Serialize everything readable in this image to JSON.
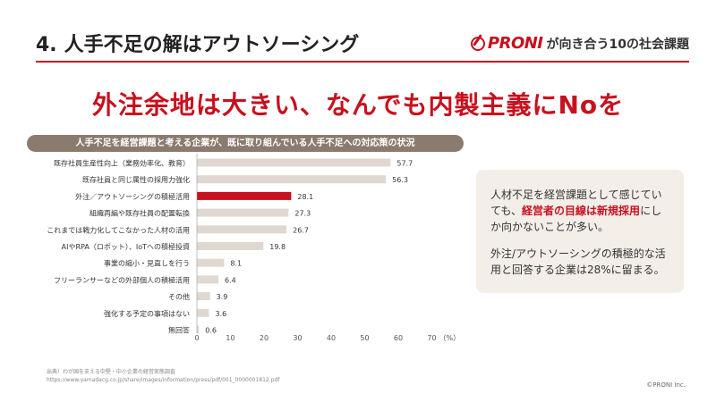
{
  "header": {
    "number": "4.",
    "title": "人手不足の解はアウトソーシング",
    "brand_name": "PRONI",
    "brand_tagline": "が向き合う10の社会課題",
    "brand_color": "#c8101e"
  },
  "headline": "外注余地は大きい、なんでも内製主義にNoを",
  "note": {
    "p1_before": "人材不足を経営課題として感じていても、",
    "p1_highlight": "経営者の目線は新規採用",
    "p1_after": "にしか向かないことが多い。",
    "p2": "外注/アウトソーシングの積極的な活用と回答する企業は28%に留まる。"
  },
  "source": {
    "line1": "出典）わが国を支える中堅・中小企業の経営実態調査",
    "line2": "https://www.yamadacg.co.jp/share/images/information/press/pdf/001_0000001812.pdf"
  },
  "copyright": "©PRONI Inc.",
  "chart_data": {
    "type": "bar",
    "orientation": "horizontal",
    "title": "人手不足を経営課題と考える企業が、既に取り組んでいる人手不足への対応策の状況",
    "categories": [
      "既存社員生産性向上（業務効率化、教育）",
      "既存社員と同じ属性の採用力強化",
      "外注／アウトソーシングの積極活用",
      "組織再編や既存社員の配置転換",
      "これまでは戦力化してこなかった人材の活用",
      "AIやRPA（ロボット）、IoTへの積極投資",
      "事業の縮小・見直しを行う",
      "フリーランサーなどの外部個人の積極活用",
      "その他",
      "強化する予定の事項はない",
      "無回答"
    ],
    "values": [
      57.7,
      56.3,
      28.1,
      27.3,
      26.7,
      19.8,
      8.1,
      6.4,
      3.9,
      3.6,
      0.6
    ],
    "value_labels": [
      "57.7",
      "56.3",
      "28.1",
      "27.3",
      "26.7",
      "19.8",
      "8.1",
      "6.4",
      "3.9",
      "3.6",
      "0.6"
    ],
    "highlight_index": 2,
    "xlim": [
      0,
      70
    ],
    "xticks": [
      "0",
      "10",
      "20",
      "30",
      "40",
      "50",
      "60",
      "70"
    ],
    "xunit": "（%）",
    "bar_color": "#e0d8d0",
    "highlight_color": "#c8101e",
    "grid": false
  }
}
